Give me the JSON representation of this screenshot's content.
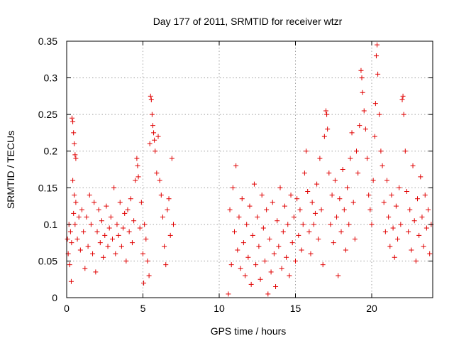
{
  "chart_data": {
    "type": "scatter",
    "title": "Day 177 of 2011, SRMTID for receiver wtzr",
    "xlabel": "GPS time / hours",
    "ylabel": "SRMTID / TECUs",
    "xlim": [
      0,
      24
    ],
    "ylim": [
      0,
      0.35
    ],
    "x_ticks": [
      0,
      5,
      10,
      15,
      20
    ],
    "x_tick_labels": [
      "0",
      "5",
      "10",
      "15",
      "20"
    ],
    "y_ticks": [
      0,
      0.05,
      0.1,
      0.15,
      0.2,
      0.25,
      0.3,
      0.35
    ],
    "y_tick_labels": [
      "0",
      "0.05",
      "0.1",
      "0.15",
      "0.2",
      "0.25",
      "0.3",
      "0.35"
    ],
    "grid": true,
    "marker": "plus",
    "marker_color": "#e00000",
    "series": [
      {
        "name": "wtzr",
        "points": [
          [
            0.05,
            0.08
          ],
          [
            0.1,
            0.06
          ],
          [
            0.15,
            0.1
          ],
          [
            0.2,
            0.045
          ],
          [
            0.25,
            0.09
          ],
          [
            0.3,
            0.022
          ],
          [
            0.32,
            0.075
          ],
          [
            0.35,
            0.245
          ],
          [
            0.4,
            0.24
          ],
          [
            0.45,
            0.225
          ],
          [
            0.5,
            0.21
          ],
          [
            0.55,
            0.195
          ],
          [
            0.6,
            0.19
          ],
          [
            0.4,
            0.16
          ],
          [
            0.5,
            0.14
          ],
          [
            0.6,
            0.13
          ],
          [
            0.45,
            0.115
          ],
          [
            0.55,
            0.1
          ],
          [
            0.7,
            0.08
          ],
          [
            0.8,
            0.11
          ],
          [
            0.9,
            0.065
          ],
          [
            1.0,
            0.12
          ],
          [
            1.1,
            0.09
          ],
          [
            1.2,
            0.04
          ],
          [
            1.3,
            0.11
          ],
          [
            1.4,
            0.07
          ],
          [
            1.5,
            0.14
          ],
          [
            1.6,
            0.1
          ],
          [
            1.7,
            0.06
          ],
          [
            1.8,
            0.13
          ],
          [
            1.9,
            0.035
          ],
          [
            2.0,
            0.09
          ],
          [
            2.1,
            0.12
          ],
          [
            2.2,
            0.075
          ],
          [
            2.3,
            0.105
          ],
          [
            2.4,
            0.055
          ],
          [
            2.5,
            0.085
          ],
          [
            2.6,
            0.125
          ],
          [
            2.7,
            0.07
          ],
          [
            2.8,
            0.095
          ],
          [
            2.9,
            0.11
          ],
          [
            3.0,
            0.08
          ],
          [
            3.1,
            0.15
          ],
          [
            3.2,
            0.06
          ],
          [
            3.3,
            0.1
          ],
          [
            3.4,
            0.085
          ],
          [
            3.5,
            0.13
          ],
          [
            3.6,
            0.07
          ],
          [
            3.7,
            0.095
          ],
          [
            3.8,
            0.115
          ],
          [
            3.9,
            0.05
          ],
          [
            4.0,
            0.12
          ],
          [
            4.1,
            0.09
          ],
          [
            4.2,
            0.135
          ],
          [
            4.3,
            0.075
          ],
          [
            4.4,
            0.105
          ],
          [
            4.5,
            0.16
          ],
          [
            4.6,
            0.19
          ],
          [
            4.65,
            0.18
          ],
          [
            4.7,
            0.165
          ],
          [
            4.8,
            0.095
          ],
          [
            4.9,
            0.13
          ],
          [
            5.0,
            0.06
          ],
          [
            5.05,
            0.02
          ],
          [
            5.1,
            0.1
          ],
          [
            5.2,
            0.08
          ],
          [
            5.3,
            0.05
          ],
          [
            5.4,
            0.03
          ],
          [
            5.45,
            0.21
          ],
          [
            5.5,
            0.275
          ],
          [
            5.55,
            0.27
          ],
          [
            5.6,
            0.25
          ],
          [
            5.65,
            0.235
          ],
          [
            5.7,
            0.225
          ],
          [
            5.75,
            0.215
          ],
          [
            5.8,
            0.2
          ],
          [
            5.9,
            0.17
          ],
          [
            6.0,
            0.22
          ],
          [
            6.1,
            0.16
          ],
          [
            6.2,
            0.14
          ],
          [
            6.3,
            0.11
          ],
          [
            6.4,
            0.07
          ],
          [
            6.5,
            0.045
          ],
          [
            6.6,
            0.12
          ],
          [
            6.7,
            0.135
          ],
          [
            6.8,
            0.085
          ],
          [
            6.9,
            0.19
          ],
          [
            7.0,
            0.1
          ],
          [
            10.6,
            0.005
          ],
          [
            10.7,
            0.12
          ],
          [
            10.8,
            0.045
          ],
          [
            10.9,
            0.15
          ],
          [
            11.0,
            0.09
          ],
          [
            11.1,
            0.18
          ],
          [
            11.2,
            0.065
          ],
          [
            11.3,
            0.11
          ],
          [
            11.4,
            0.04
          ],
          [
            11.5,
            0.135
          ],
          [
            11.6,
            0.075
          ],
          [
            11.7,
            0.03
          ],
          [
            11.8,
            0.1
          ],
          [
            11.9,
            0.055
          ],
          [
            12.0,
            0.125
          ],
          [
            12.1,
            0.018
          ],
          [
            12.2,
            0.085
          ],
          [
            12.3,
            0.155
          ],
          [
            12.4,
            0.045
          ],
          [
            12.5,
            0.11
          ],
          [
            12.6,
            0.07
          ],
          [
            12.7,
            0.025
          ],
          [
            12.8,
            0.14
          ],
          [
            12.9,
            0.095
          ],
          [
            13.0,
            0.05
          ],
          [
            13.1,
            0.12
          ],
          [
            13.2,
            0.005
          ],
          [
            13.3,
            0.08
          ],
          [
            13.4,
            0.035
          ],
          [
            13.5,
            0.13
          ],
          [
            13.6,
            0.06
          ],
          [
            13.7,
            0.015
          ],
          [
            13.8,
            0.105
          ],
          [
            13.9,
            0.07
          ],
          [
            14.0,
            0.15
          ],
          [
            14.1,
            0.04
          ],
          [
            14.2,
            0.09
          ],
          [
            14.3,
            0.125
          ],
          [
            14.4,
            0.055
          ],
          [
            14.5,
            0.1
          ],
          [
            14.6,
            0.03
          ],
          [
            14.7,
            0.14
          ],
          [
            14.8,
            0.075
          ],
          [
            14.9,
            0.11
          ],
          [
            15.0,
            0.05
          ],
          [
            15.1,
            0.135
          ],
          [
            15.2,
            0.085
          ],
          [
            15.3,
            0.12
          ],
          [
            15.4,
            0.065
          ],
          [
            15.5,
            0.1
          ],
          [
            15.6,
            0.17
          ],
          [
            15.7,
            0.2
          ],
          [
            15.8,
            0.145
          ],
          [
            15.9,
            0.09
          ],
          [
            16.0,
            0.06
          ],
          [
            16.1,
            0.13
          ],
          [
            16.2,
            0.1
          ],
          [
            16.3,
            0.115
          ],
          [
            16.4,
            0.155
          ],
          [
            16.5,
            0.08
          ],
          [
            16.6,
            0.19
          ],
          [
            16.7,
            0.12
          ],
          [
            16.8,
            0.045
          ],
          [
            16.9,
            0.22
          ],
          [
            17.0,
            0.255
          ],
          [
            17.05,
            0.25
          ],
          [
            17.1,
            0.23
          ],
          [
            17.2,
            0.17
          ],
          [
            17.3,
            0.1
          ],
          [
            17.4,
            0.14
          ],
          [
            17.5,
            0.075
          ],
          [
            17.6,
            0.16
          ],
          [
            17.7,
            0.11
          ],
          [
            17.8,
            0.03
          ],
          [
            17.9,
            0.135
          ],
          [
            18.0,
            0.09
          ],
          [
            18.1,
            0.175
          ],
          [
            18.2,
            0.12
          ],
          [
            18.3,
            0.065
          ],
          [
            18.4,
            0.15
          ],
          [
            18.5,
            0.1
          ],
          [
            18.6,
            0.19
          ],
          [
            18.7,
            0.225
          ],
          [
            18.8,
            0.13
          ],
          [
            18.9,
            0.08
          ],
          [
            19.0,
            0.2
          ],
          [
            19.1,
            0.17
          ],
          [
            19.2,
            0.235
          ],
          [
            19.3,
            0.31
          ],
          [
            19.35,
            0.3
          ],
          [
            19.4,
            0.28
          ],
          [
            19.5,
            0.255
          ],
          [
            19.6,
            0.23
          ],
          [
            19.7,
            0.19
          ],
          [
            19.8,
            0.14
          ],
          [
            19.9,
            0.12
          ],
          [
            20.0,
            0.1
          ],
          [
            20.1,
            0.16
          ],
          [
            20.2,
            0.22
          ],
          [
            20.25,
            0.265
          ],
          [
            20.3,
            0.33
          ],
          [
            20.35,
            0.345
          ],
          [
            20.4,
            0.305
          ],
          [
            20.5,
            0.25
          ],
          [
            20.6,
            0.2
          ],
          [
            20.7,
            0.18
          ],
          [
            20.8,
            0.13
          ],
          [
            20.9,
            0.09
          ],
          [
            21.0,
            0.16
          ],
          [
            21.1,
            0.11
          ],
          [
            21.2,
            0.07
          ],
          [
            21.3,
            0.14
          ],
          [
            21.4,
            0.095
          ],
          [
            21.5,
            0.055
          ],
          [
            21.6,
            0.125
          ],
          [
            21.7,
            0.08
          ],
          [
            21.8,
            0.15
          ],
          [
            21.9,
            0.1
          ],
          [
            22.0,
            0.27
          ],
          [
            22.05,
            0.275
          ],
          [
            22.1,
            0.25
          ],
          [
            22.2,
            0.2
          ],
          [
            22.3,
            0.145
          ],
          [
            22.4,
            0.09
          ],
          [
            22.5,
            0.12
          ],
          [
            22.6,
            0.065
          ],
          [
            22.7,
            0.18
          ],
          [
            22.8,
            0.105
          ],
          [
            22.9,
            0.05
          ],
          [
            23.0,
            0.135
          ],
          [
            23.1,
            0.085
          ],
          [
            23.2,
            0.165
          ],
          [
            23.3,
            0.11
          ],
          [
            23.4,
            0.07
          ],
          [
            23.5,
            0.14
          ],
          [
            23.6,
            0.095
          ],
          [
            23.7,
            0.12
          ],
          [
            23.8,
            0.06
          ],
          [
            23.9,
            0.1
          ]
        ]
      }
    ]
  }
}
